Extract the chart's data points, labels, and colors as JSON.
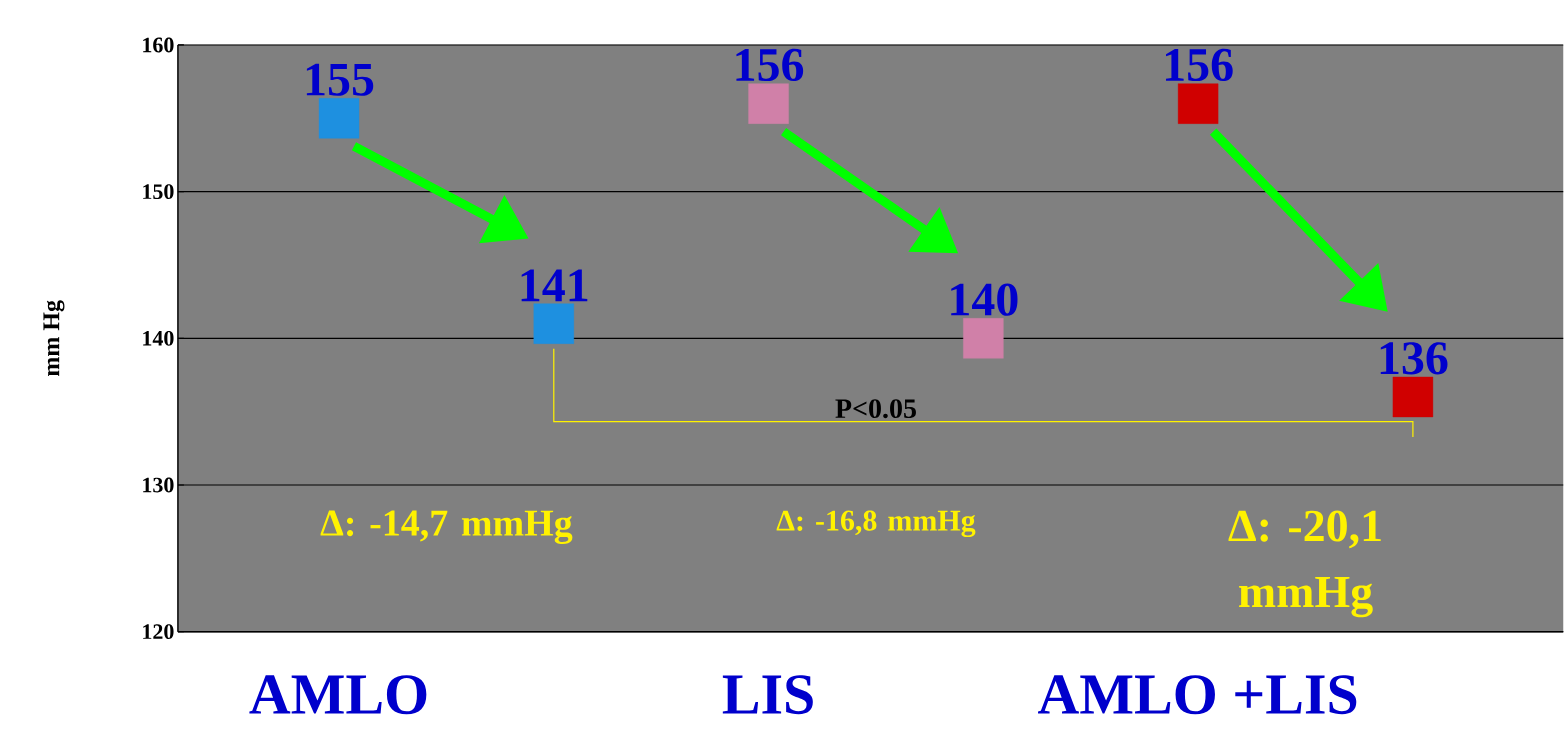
{
  "chart_data": {
    "type": "scatter",
    "ylabel": "mm Hg",
    "categories": [
      "AMLO",
      null,
      "LIS",
      null,
      "AMLO +LIS",
      null
    ],
    "series": [
      {
        "colors": [
          "#1e90e0",
          "#1e90e0",
          "#d080a8",
          "#d080a8",
          "#d00000",
          "#d00000"
        ],
        "values": [
          155,
          null,
          156,
          null,
          156,
          null
        ]
      },
      {
        "colors": [
          "#1e90e0",
          "#1e90e0",
          "#d080a8",
          "#d080a8",
          "#d00000",
          "#d00000"
        ],
        "values": [
          null,
          141,
          null,
          140,
          null,
          136
        ]
      }
    ],
    "ylim": [
      120,
      160
    ],
    "yticks": [
      120,
      130,
      140,
      150,
      160
    ],
    "grid": "y",
    "marker": "square",
    "data_labels": true,
    "annotations": [
      "Δ: -14,7 mmHg",
      "Δ: -16,8 mmHg",
      "Δ: -20,1 mmHg",
      "P<0.05"
    ]
  }
}
